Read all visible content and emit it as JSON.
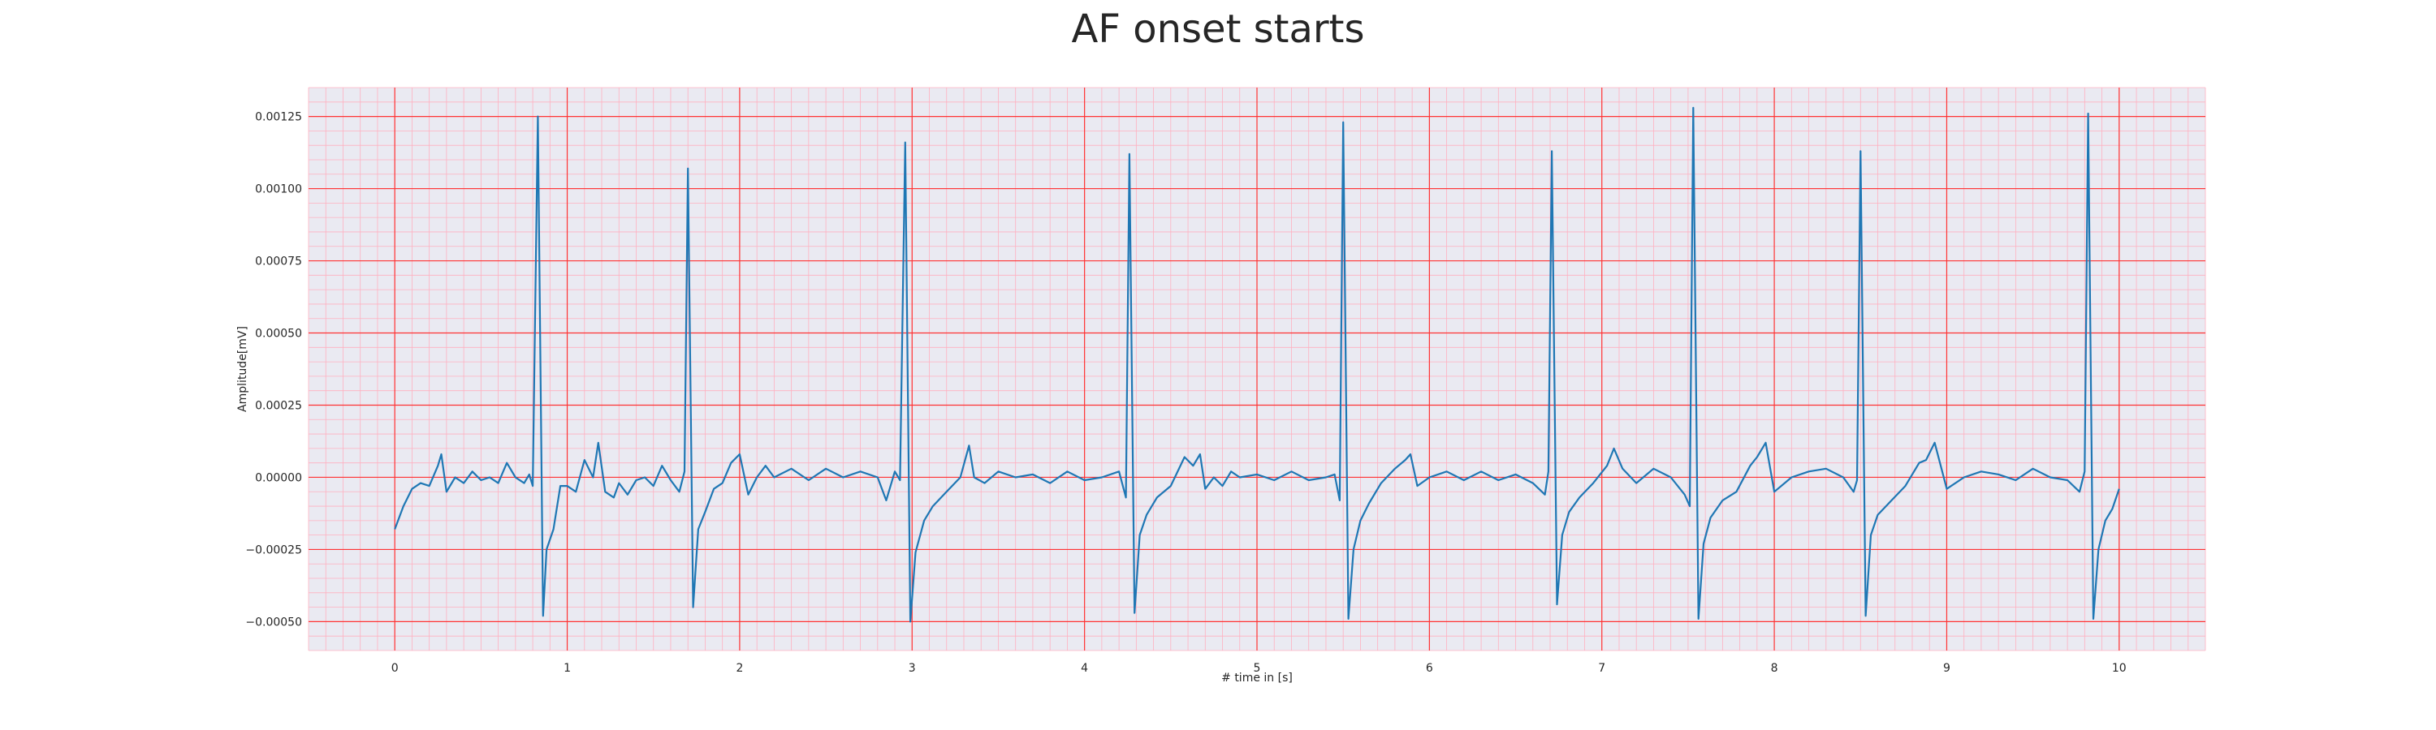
{
  "chart_data": {
    "type": "line",
    "title": "AF onset starts",
    "xlabel": "# time in [s]",
    "ylabel": "Amplitude[mV]",
    "xlim": [
      -0.5,
      10.5
    ],
    "ylim": [
      -0.0006,
      0.00135
    ],
    "xticks": [
      0,
      1,
      2,
      3,
      4,
      5,
      6,
      7,
      8,
      9,
      10
    ],
    "xtick_labels": [
      "0",
      "1",
      "2",
      "3",
      "4",
      "5",
      "6",
      "7",
      "8",
      "9",
      "10"
    ],
    "yticks": [
      -0.0005,
      -0.00025,
      0.0,
      0.00025,
      0.0005,
      0.00075,
      0.001,
      0.00125
    ],
    "ytick_labels": [
      "−0.00050",
      "−0.00025",
      "0.00000",
      "0.00025",
      "0.00050",
      "0.00075",
      "0.00100",
      "0.00125"
    ],
    "grid": "major and minor (ECG paper style)",
    "colors": {
      "line": "#1f77b4",
      "plot_background": "#eaeaf2",
      "major_grid": "#ff3333",
      "minor_grid": "#ffb0c0",
      "text": "#262626"
    },
    "r_peaks": [
      {
        "t": 0.83,
        "r": 0.00125,
        "s": -0.00048
      },
      {
        "t": 1.7,
        "r": 0.00107,
        "s": -0.00045
      },
      {
        "t": 2.96,
        "r": 0.00116,
        "s": -0.0005
      },
      {
        "t": 4.26,
        "r": 0.00112,
        "s": -0.00047
      },
      {
        "t": 5.5,
        "r": 0.00123,
        "s": -0.00049
      },
      {
        "t": 6.71,
        "r": 0.00113,
        "s": -0.00044
      },
      {
        "t": 7.53,
        "r": 0.00128,
        "s": -0.00049
      },
      {
        "t": 8.5,
        "r": 0.00113,
        "s": -0.00048
      },
      {
        "t": 9.82,
        "r": 0.00126,
        "s": -0.00049
      }
    ],
    "series": [
      {
        "x": [
          0.0,
          0.05,
          0.1,
          0.15,
          0.2,
          0.25,
          0.27,
          0.3,
          0.35,
          0.4,
          0.45,
          0.5,
          0.55,
          0.6,
          0.65,
          0.7,
          0.75,
          0.78,
          0.8,
          0.83,
          0.86,
          0.88,
          0.92,
          0.96,
          1.0,
          1.05,
          1.1,
          1.15,
          1.18,
          1.22,
          1.27,
          1.3,
          1.35,
          1.4,
          1.45,
          1.5,
          1.55,
          1.6,
          1.65,
          1.68,
          1.7,
          1.73,
          1.76,
          1.8,
          1.85,
          1.9,
          1.95,
          2.0,
          2.05,
          2.1,
          2.15,
          2.2,
          2.3,
          2.4,
          2.5,
          2.6,
          2.7,
          2.8,
          2.85,
          2.9,
          2.93,
          2.96,
          2.99,
          3.02,
          3.07,
          3.12,
          3.2,
          3.28,
          3.33,
          3.36,
          3.42,
          3.5,
          3.6,
          3.7,
          3.8,
          3.9,
          4.0,
          4.1,
          4.2,
          4.24,
          4.26,
          4.29,
          4.32,
          4.36,
          4.42,
          4.5,
          4.58,
          4.63,
          4.67,
          4.7,
          4.75,
          4.8,
          4.85,
          4.9,
          5.0,
          5.1,
          5.2,
          5.3,
          5.4,
          5.45,
          5.48,
          5.5,
          5.53,
          5.56,
          5.6,
          5.65,
          5.72,
          5.8,
          5.86,
          5.89,
          5.93,
          6.0,
          6.1,
          6.2,
          6.3,
          6.4,
          6.5,
          6.6,
          6.67,
          6.69,
          6.71,
          6.74,
          6.77,
          6.81,
          6.87,
          6.95,
          7.03,
          7.07,
          7.12,
          7.2,
          7.3,
          7.4,
          7.48,
          7.51,
          7.53,
          7.56,
          7.59,
          7.63,
          7.7,
          7.78,
          7.86,
          7.9,
          7.95,
          8.0,
          8.1,
          8.2,
          8.3,
          8.4,
          8.46,
          8.48,
          8.5,
          8.53,
          8.56,
          8.6,
          8.68,
          8.76,
          8.84,
          8.88,
          8.93,
          9.0,
          9.1,
          9.2,
          9.3,
          9.4,
          9.5,
          9.6,
          9.7,
          9.77,
          9.8,
          9.82,
          9.85,
          9.88,
          9.92,
          9.96,
          10.0
        ],
        "y": [
          -0.00018,
          -0.0001,
          -4e-05,
          -2e-05,
          -3e-05,
          4e-05,
          8e-05,
          -5e-05,
          0.0,
          -2e-05,
          2e-05,
          -1e-05,
          0.0,
          -2e-05,
          5e-05,
          0.0,
          -2e-05,
          1e-05,
          -3e-05,
          0.00125,
          -0.00048,
          -0.00025,
          -0.00018,
          -3e-05,
          -3e-05,
          -5e-05,
          6e-05,
          0.0,
          0.00012,
          -5e-05,
          -7e-05,
          -2e-05,
          -6e-05,
          -1e-05,
          0.0,
          -3e-05,
          4e-05,
          -1e-05,
          -5e-05,
          2e-05,
          0.00107,
          -0.00045,
          -0.00018,
          -0.00012,
          -4e-05,
          -2e-05,
          5e-05,
          8e-05,
          -6e-05,
          0.0,
          4e-05,
          0.0,
          3e-05,
          -1e-05,
          3e-05,
          0.0,
          2e-05,
          0.0,
          -8e-05,
          2e-05,
          -1e-05,
          0.00116,
          -0.0005,
          -0.00026,
          -0.00015,
          -0.0001,
          -5e-05,
          0.0,
          0.00011,
          0.0,
          -2e-05,
          2e-05,
          0.0,
          1e-05,
          -2e-05,
          2e-05,
          -1e-05,
          0.0,
          2e-05,
          -7e-05,
          0.00112,
          -0.00047,
          -0.0002,
          -0.00013,
          -7e-05,
          -3e-05,
          7e-05,
          4e-05,
          8e-05,
          -4e-05,
          0.0,
          -3e-05,
          2e-05,
          0.0,
          1e-05,
          -1e-05,
          2e-05,
          -1e-05,
          0.0,
          1e-05,
          -8e-05,
          0.00123,
          -0.00049,
          -0.00025,
          -0.00015,
          -9e-05,
          -2e-05,
          3e-05,
          6e-05,
          8e-05,
          -3e-05,
          0.0,
          2e-05,
          -1e-05,
          2e-05,
          -1e-05,
          1e-05,
          -2e-05,
          -6e-05,
          2e-05,
          0.00113,
          -0.00044,
          -0.0002,
          -0.00012,
          -7e-05,
          -2e-05,
          4e-05,
          0.0001,
          3e-05,
          -2e-05,
          3e-05,
          0.0,
          -6e-05,
          -0.0001,
          0.00128,
          -0.00049,
          -0.00023,
          -0.00014,
          -8e-05,
          -5e-05,
          4e-05,
          7e-05,
          0.00012,
          -5e-05,
          0.0,
          2e-05,
          3e-05,
          0.0,
          -5e-05,
          -1e-05,
          0.00113,
          -0.00048,
          -0.0002,
          -0.00013,
          -8e-05,
          -3e-05,
          5e-05,
          6e-05,
          0.00012,
          -4e-05,
          0.0,
          2e-05,
          1e-05,
          -1e-05,
          3e-05,
          0.0,
          -1e-05,
          -5e-05,
          2e-05,
          0.00126,
          -0.00049,
          -0.00025,
          -0.00015,
          -0.00011,
          -4e-05
        ]
      }
    ]
  }
}
